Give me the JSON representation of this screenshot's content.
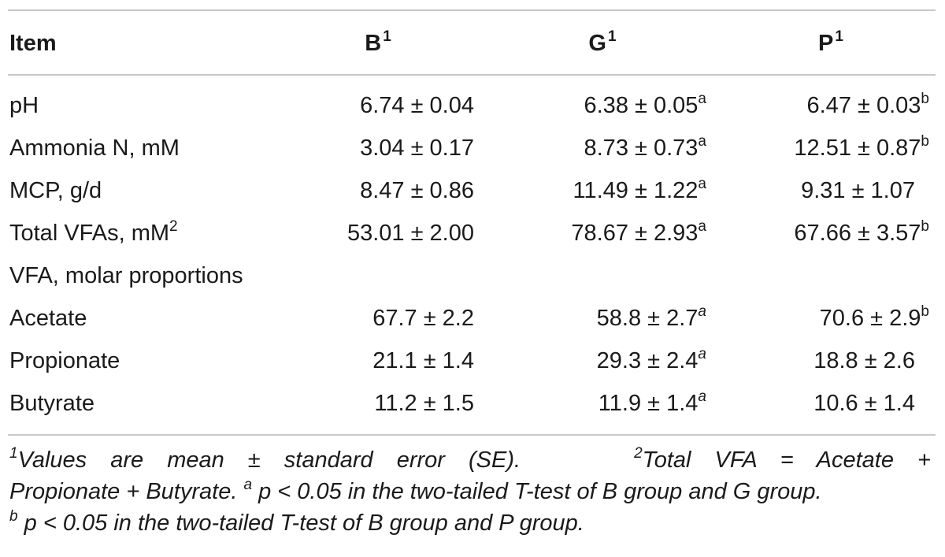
{
  "table": {
    "header": {
      "item": "Item",
      "col1": "B",
      "col1_sup": "1",
      "col2": "G",
      "col2_sup": "1",
      "col3": "P",
      "col3_sup": "1"
    },
    "rows": [
      {
        "label": "pH",
        "label_sup": "",
        "b": "6.74 ± 0.04",
        "b_sup": "",
        "g": "6.38 ± 0.05",
        "g_sup": "a",
        "p": "6.47 ± 0.03",
        "p_sup": "b"
      },
      {
        "label": "Ammonia N, mM",
        "label_sup": "",
        "b": "3.04 ± 0.17",
        "b_sup": "",
        "g": "8.73 ± 0.73",
        "g_sup": "a",
        "p": "12.51 ± 0.87",
        "p_sup": "b"
      },
      {
        "label": "MCP, g/d",
        "label_sup": "",
        "b": "8.47 ± 0.86",
        "b_sup": "",
        "g": "11.49 ± 1.22",
        "g_sup": "a",
        "p": "9.31 ± 1.07",
        "p_sup": ""
      },
      {
        "label": "Total VFAs, mM",
        "label_sup": "2",
        "b": "53.01 ± 2.00",
        "b_sup": "",
        "g": "78.67 ± 2.93",
        "g_sup": "a",
        "p": "67.66 ± 3.57",
        "p_sup": "b"
      },
      {
        "label": "VFA, molar proportions",
        "label_sup": "",
        "b": "",
        "b_sup": "",
        "g": "",
        "g_sup": "",
        "p": "",
        "p_sup": ""
      },
      {
        "label": "Acetate",
        "label_sup": "",
        "b": "67.7 ± 2.2",
        "b_sup": "",
        "g": "58.8 ± 2.7",
        "g_sup": "a",
        "p": "70.6 ± 2.9",
        "p_sup": "b"
      },
      {
        "label": "Propionate",
        "label_sup": "",
        "b": "21.1 ± 1.4",
        "b_sup": "",
        "g": "29.3 ± 2.4",
        "g_sup": "a",
        "p": "18.8 ± 2.6",
        "p_sup": ""
      },
      {
        "label": "Butyrate",
        "label_sup": "",
        "b": "11.2 ± 1.5",
        "b_sup": "",
        "g": "11.9 ± 1.4",
        "g_sup": "a",
        "p": "10.6 ± 1.4",
        "p_sup": ""
      }
    ]
  },
  "footnotes": {
    "line1_words": [
      "1",
      "Values",
      "are",
      "mean",
      "±",
      "standard",
      "error",
      "(SE).",
      "2",
      "Total",
      "VFA",
      "=",
      "Acetate",
      "+"
    ],
    "note1_sup": "1",
    "note1_text": "Values are mean ± standard error (SE).",
    "note2_sup": "2",
    "note2_text_a": "Total VFA = Acetate +",
    "note2_text_b": "Propionate + Butyrate.",
    "note_a_sup": "a",
    "note_a_text": "p < 0.05 in the two-tailed T-test of B group and G group.",
    "note_b_sup": "b",
    "note_b_text": "p < 0.05 in the two-tailed T-test of B group and P group."
  }
}
